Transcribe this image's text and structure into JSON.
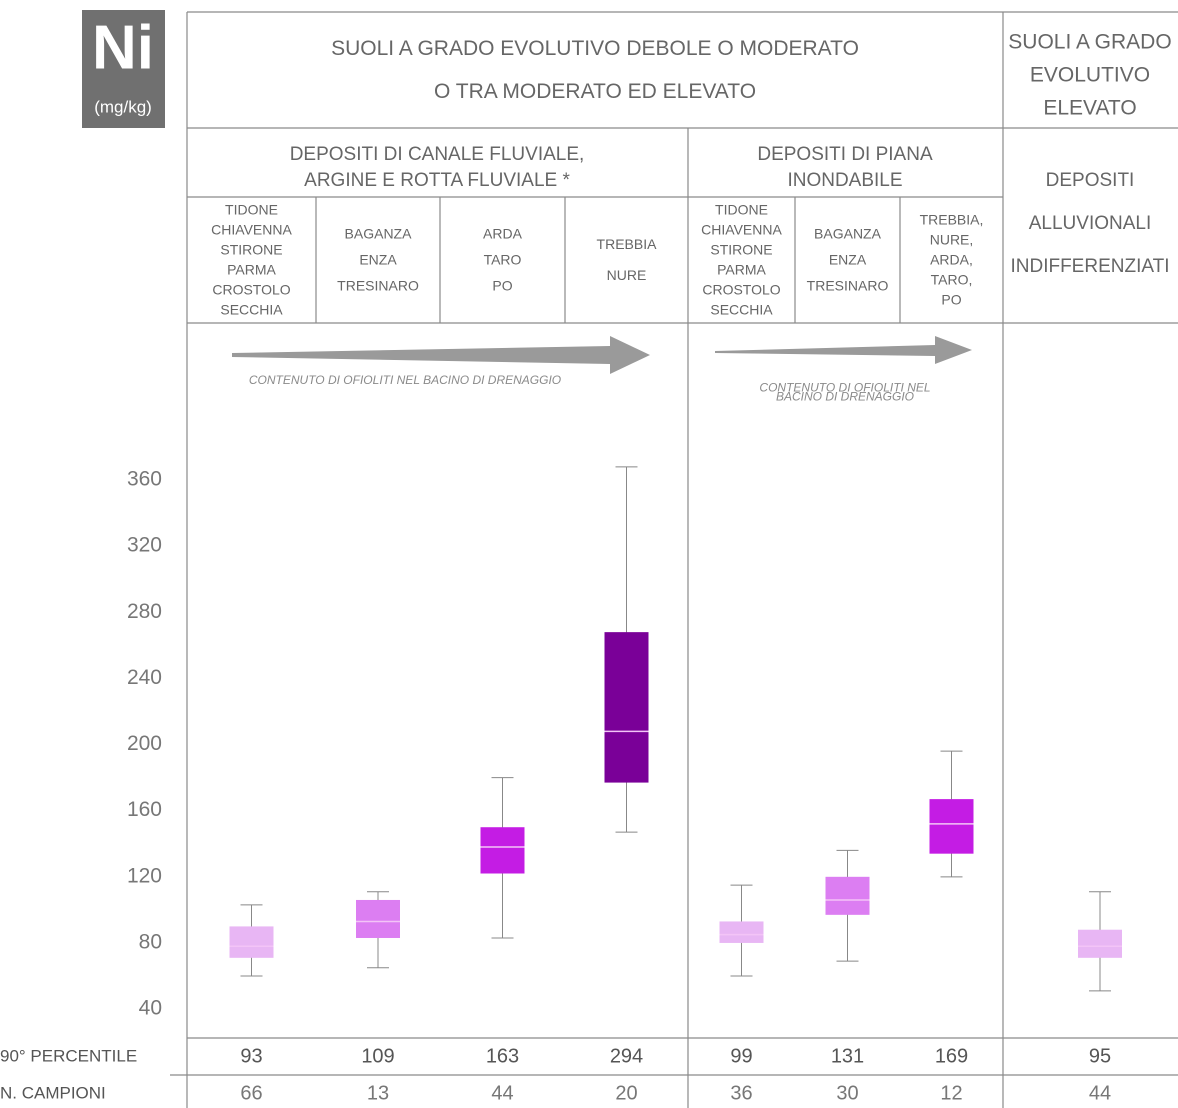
{
  "chart_data": {
    "type": "box",
    "title": "Ni",
    "y_label": "(mg/kg)",
    "header": {
      "top": [
        [
          "SUOLI A  GRADO EVOLUTIVO DEBOLE O MODERATO",
          "O TRA MODERATO ED ELEVATO"
        ],
        [
          "SUOLI A GRADO",
          "EVOLUTIVO",
          "ELEVATO"
        ]
      ],
      "middle": [
        [
          "DEPOSITI DI CANALE FLUVIALE,",
          "ARGINE E ROTTA FLUVIALE *"
        ],
        [
          "DEPOSITI DI PIANA",
          "INONDABILE"
        ],
        [
          "DEPOSITI",
          "ALLUVIONALI",
          "INDIFFERENZIATI"
        ]
      ]
    },
    "categories": [
      [
        "TIDONE",
        "CHIAVENNA",
        "STIRONE",
        "PARMA",
        "CROSTOLO",
        "SECCHIA"
      ],
      [
        "BAGANZA",
        "ENZA",
        "TRESINARO"
      ],
      [
        "ARDA",
        "TARO",
        "PO"
      ],
      [
        "TREBBIA",
        "NURE"
      ],
      [
        "TIDONE",
        "CHIAVENNA",
        "STIRONE",
        "PARMA",
        "CROSTOLO",
        "SECCHIA"
      ],
      [
        "BAGANZA",
        "ENZA",
        "TRESINARO"
      ],
      [
        "TREBBIA,",
        "NURE,",
        "ARDA,",
        "TARO,",
        "PO"
      ],
      null
    ],
    "annotations": [
      [
        "CONTENUTO DI OFIOLITI NEL BACINO DI DRENAGGIO"
      ],
      [
        "CONTENUTO DI OFIOLITI NEL",
        "BACINO DI DRENAGGIO"
      ]
    ],
    "stats": {
      "min": [
        60,
        65,
        83,
        147,
        60,
        69,
        120,
        51
      ],
      "q1": [
        71,
        83,
        122,
        177,
        80,
        97,
        134,
        71
      ],
      "median": [
        78,
        93,
        138,
        208,
        85,
        106,
        152,
        78
      ],
      "q3": [
        90,
        106,
        150,
        268,
        93,
        120,
        167,
        88
      ],
      "max": [
        103,
        111,
        180,
        368,
        115,
        136,
        196,
        111
      ]
    },
    "colors": [
      "#e8b6f4",
      "#dc7ef2",
      "#c41ce4",
      "#7a0098",
      "#e8b6f4",
      "#dc7ef2",
      "#c41ce4",
      "#e8b6f4"
    ],
    "ylim": [
      22.5,
      455
    ],
    "yticks": [
      40,
      80,
      120,
      160,
      200,
      240,
      280,
      320,
      360
    ],
    "table_rows": [
      {
        "label": "90° PERCENTILE",
        "values": [
          93,
          109,
          163,
          294,
          99,
          131,
          169,
          95
        ]
      },
      {
        "label": "N. CAMPIONI",
        "values": [
          66,
          13,
          44,
          20,
          36,
          30,
          12,
          44
        ]
      }
    ]
  }
}
